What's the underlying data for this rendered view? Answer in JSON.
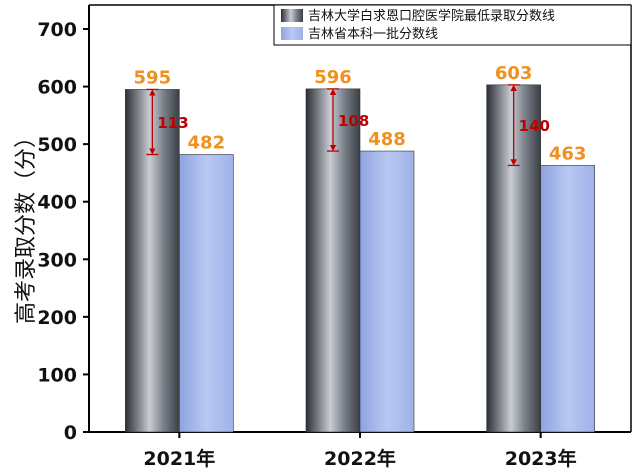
{
  "chart_data": {
    "type": "bar",
    "categories": [
      "2021年",
      "2022年",
      "2023年"
    ],
    "series": [
      {
        "name": "吉林大学白求恩口腔医学院最低录取分数线",
        "values": [
          595,
          596,
          603
        ],
        "color": "#4a4f57"
      },
      {
        "name": "吉林省本科一批分数线",
        "values": [
          482,
          488,
          463
        ],
        "color": "#9db0e6"
      }
    ],
    "differences": [
      113,
      108,
      140
    ],
    "ylabel": "高考录取分数（分）",
    "xlabel": "",
    "ylim": [
      0,
      700
    ],
    "yticks": [
      0,
      100,
      200,
      300,
      400,
      500,
      600,
      700
    ],
    "grid": false,
    "legend_position": "top-right",
    "value_label_color": "#f0901e",
    "difference_color": "#c00000"
  }
}
